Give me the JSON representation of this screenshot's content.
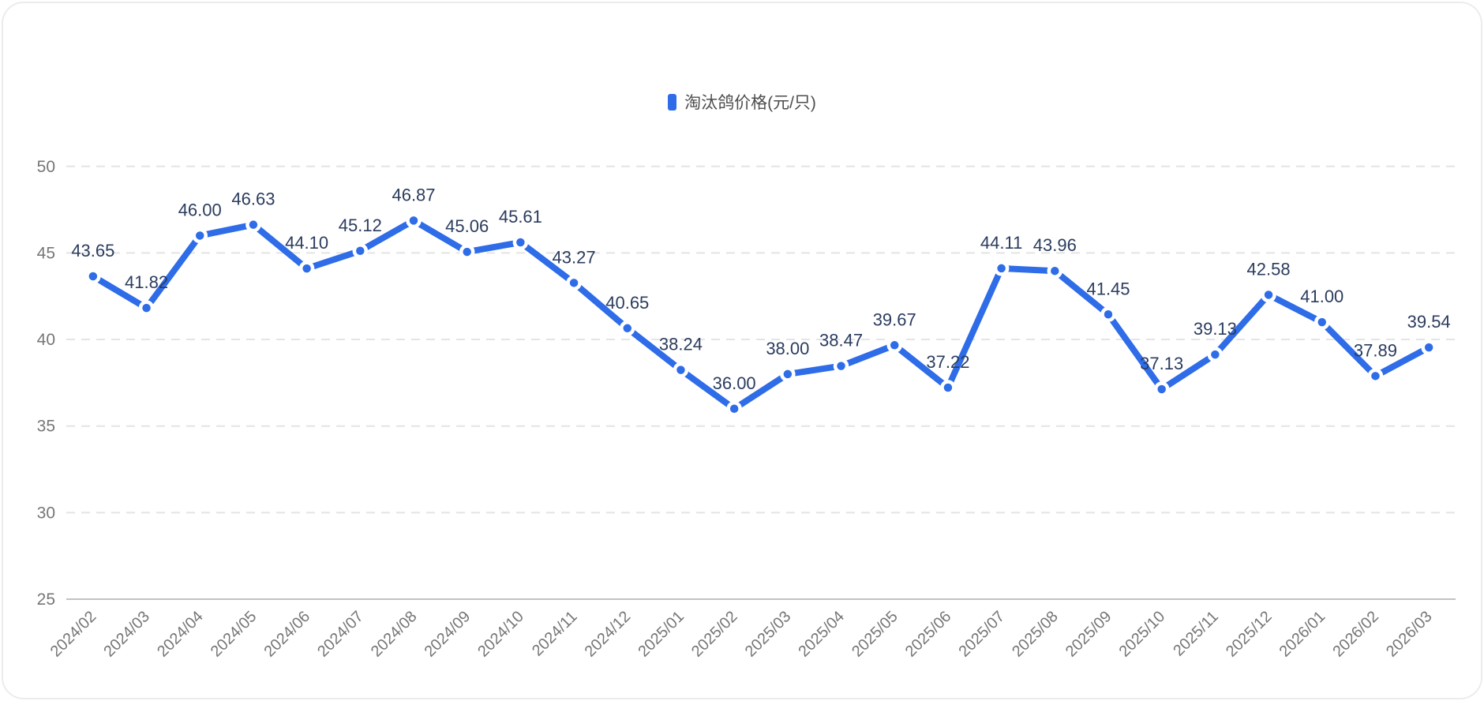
{
  "legend": {
    "label": "淘汰鸽价格(元/只)"
  },
  "chart_data": {
    "type": "line",
    "title": "淘汰鸽价格(元/只)",
    "series_name": "淘汰鸽价格(元/只)",
    "categories": [
      "2024/02",
      "2024/03",
      "2024/04",
      "2024/05",
      "2024/06",
      "2024/07",
      "2024/08",
      "2024/09",
      "2024/10",
      "2024/11",
      "2024/12",
      "2025/01",
      "2025/02",
      "2025/03",
      "2025/04",
      "2025/05",
      "2025/06",
      "2025/07",
      "2025/08",
      "2025/09",
      "2025/10",
      "2025/11",
      "2025/12",
      "2026/01",
      "2026/02",
      "2026/03"
    ],
    "values": [
      43.65,
      41.82,
      46.0,
      46.63,
      44.1,
      45.12,
      46.87,
      45.06,
      45.61,
      43.27,
      40.65,
      38.24,
      36.0,
      38.0,
      38.47,
      39.67,
      37.22,
      44.11,
      43.96,
      41.45,
      37.13,
      39.13,
      42.58,
      41.0,
      37.89,
      39.54
    ],
    "xlabel": "",
    "ylabel": "",
    "ylim": [
      25,
      50
    ],
    "y_ticks": [
      25,
      30,
      35,
      40,
      45,
      50
    ],
    "grid": "horizontal-dashed",
    "legend_position": "top-center",
    "point_labels": "values shown above each point, 2 decimals",
    "x_label_rotation": -45,
    "colors": {
      "line": "#2e6ce8",
      "point_fill": "#2e6ce8",
      "point_halo": "#ffffff",
      "value_label": "#2b3c5e",
      "axis_text": "#767676",
      "gridline": "#e4e4e4",
      "axis_line": "#c2c2c2",
      "legend_text": "#4d4d4d"
    }
  }
}
